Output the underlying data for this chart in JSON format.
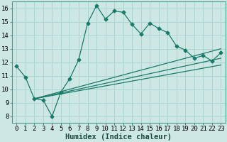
{
  "xlabel": "Humidex (Indice chaleur)",
  "background_color": "#cde8e4",
  "grid_color": "#aed4cf",
  "line_color": "#1a7a6a",
  "spine_color": "#4a9a8a",
  "xlim": [
    -0.5,
    23.5
  ],
  "ylim": [
    7.5,
    16.5
  ],
  "xticks": [
    0,
    1,
    2,
    3,
    4,
    5,
    6,
    7,
    8,
    9,
    10,
    11,
    12,
    13,
    14,
    15,
    16,
    17,
    18,
    19,
    20,
    21,
    22,
    23
  ],
  "yticks": [
    8,
    9,
    10,
    11,
    12,
    13,
    14,
    15,
    16
  ],
  "curve1_x": [
    0,
    1,
    2,
    3,
    4,
    5,
    6,
    7,
    8,
    9,
    10,
    11,
    12,
    13,
    14,
    15,
    16,
    17,
    18,
    19,
    20,
    21,
    22,
    23
  ],
  "curve1_y": [
    11.7,
    10.9,
    9.3,
    9.2,
    8.0,
    9.8,
    10.8,
    12.2,
    14.9,
    16.2,
    15.2,
    15.8,
    15.7,
    14.8,
    14.1,
    14.9,
    14.5,
    14.2,
    13.2,
    12.9,
    12.3,
    12.5,
    12.1,
    12.7
  ],
  "line1_x": [
    2,
    23
  ],
  "line1_y": [
    9.3,
    13.0
  ],
  "line2_x": [
    2,
    23
  ],
  "line2_y": [
    9.3,
    12.3
  ],
  "line3_x": [
    2,
    23
  ],
  "line3_y": [
    9.3,
    11.8
  ],
  "marker_size": 2.5,
  "lw": 0.9,
  "tick_fontsize": 6.5,
  "xlabel_fontsize": 7.5
}
